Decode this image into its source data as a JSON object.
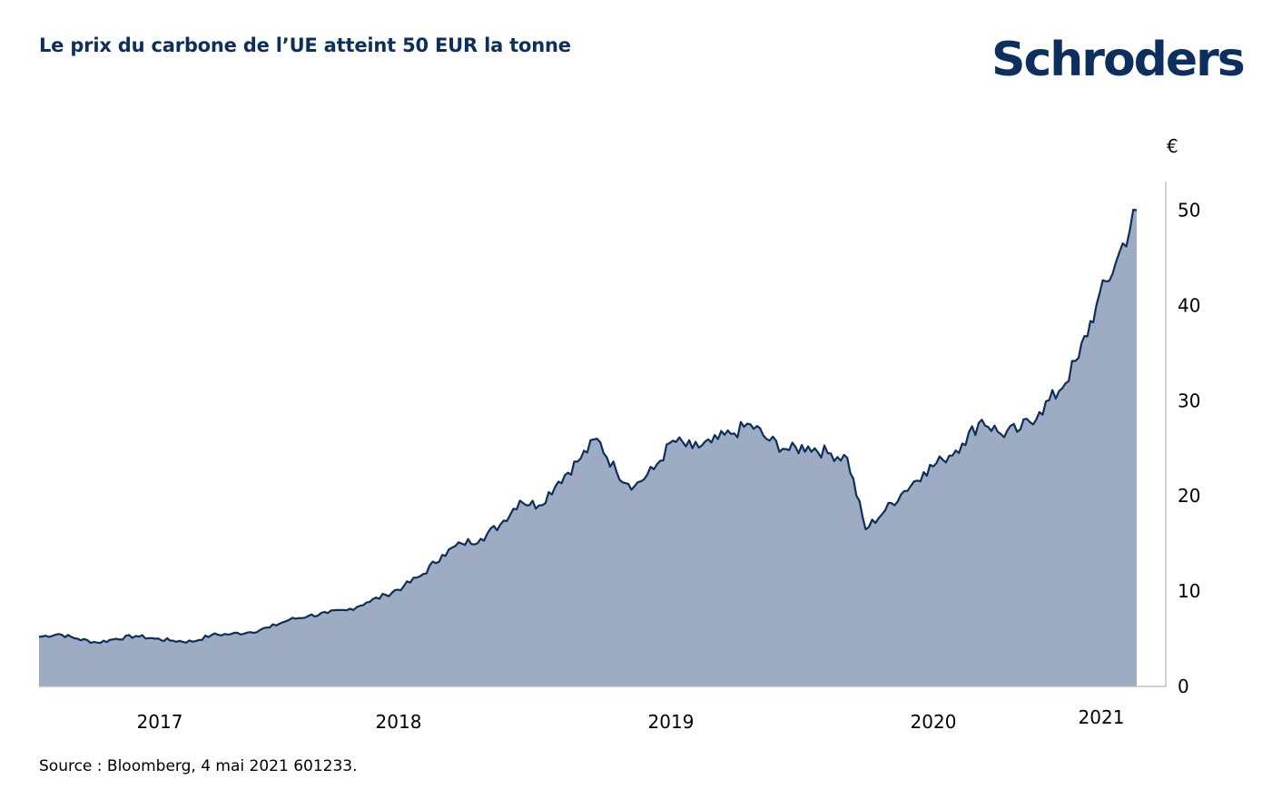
{
  "title": "Le prix du carbone de l’UE atteint 50 EUR la tonne",
  "brand": "Schroders",
  "source": "Source : Bloomberg, 4 mai 2021 601233.",
  "colors": {
    "title": "#0d2f5e",
    "line": "#0d2f5e",
    "area_fill": "#9dacc2",
    "axis": "#b4b4b4"
  },
  "chart_data": {
    "type": "area",
    "title": "Le prix du carbone de l’UE atteint 50 EUR la tonne",
    "ylabel": "€",
    "xlabel": "",
    "ylim": [
      0,
      53
    ],
    "y_ticks": [
      0,
      10,
      20,
      30,
      40,
      50
    ],
    "y_axis_position": "right",
    "grid": false,
    "legend": "none",
    "x_ticks": [
      "2017",
      "2018",
      "2019",
      "2020",
      "2021"
    ],
    "series": [
      {
        "x": [
          "2016-08",
          "2016-09",
          "2016-10",
          "2016-11",
          "2016-12",
          "2017-01",
          "2017-02",
          "2017-03",
          "2017-04",
          "2017-05",
          "2017-06",
          "2017-07",
          "2017-08",
          "2017-09",
          "2017-10",
          "2017-11",
          "2017-12",
          "2018-01",
          "2018-02",
          "2018-03",
          "2018-04",
          "2018-05",
          "2018-06",
          "2018-07",
          "2018-08",
          "2018-09",
          "2018-10",
          "2018-11",
          "2018-12",
          "2019-01",
          "2019-02",
          "2019-03",
          "2019-04",
          "2019-05",
          "2019-06",
          "2019-07",
          "2019-08",
          "2019-09",
          "2019-10",
          "2019-11",
          "2019-12",
          "2020-01",
          "2020-02",
          "2020-03",
          "2020-04",
          "2020-05",
          "2020-06",
          "2020-07",
          "2020-08",
          "2020-09",
          "2020-10",
          "2020-11",
          "2020-12",
          "2021-01",
          "2021-02",
          "2021-03",
          "2021-04",
          "2021-05"
        ],
        "values": [
          5.2,
          5.5,
          5.0,
          4.6,
          5.0,
          5.3,
          5.0,
          4.8,
          4.7,
          5.4,
          5.5,
          5.7,
          6.2,
          7.0,
          7.4,
          7.7,
          8.0,
          8.8,
          9.6,
          10.5,
          11.8,
          13.8,
          15.0,
          15.5,
          17.0,
          19.5,
          19.0,
          21.5,
          23.6,
          26.0,
          22.5,
          21.0,
          22.8,
          25.8,
          25.0,
          25.6,
          26.5,
          27.5,
          25.8,
          24.8,
          25.2,
          24.5,
          24.0,
          16.5,
          18.5,
          20.5,
          22.5,
          23.8,
          25.5,
          28.0,
          26.5,
          27.0,
          28.8,
          31.0,
          34.5,
          40.0,
          44.5,
          50.0
        ]
      }
    ]
  }
}
